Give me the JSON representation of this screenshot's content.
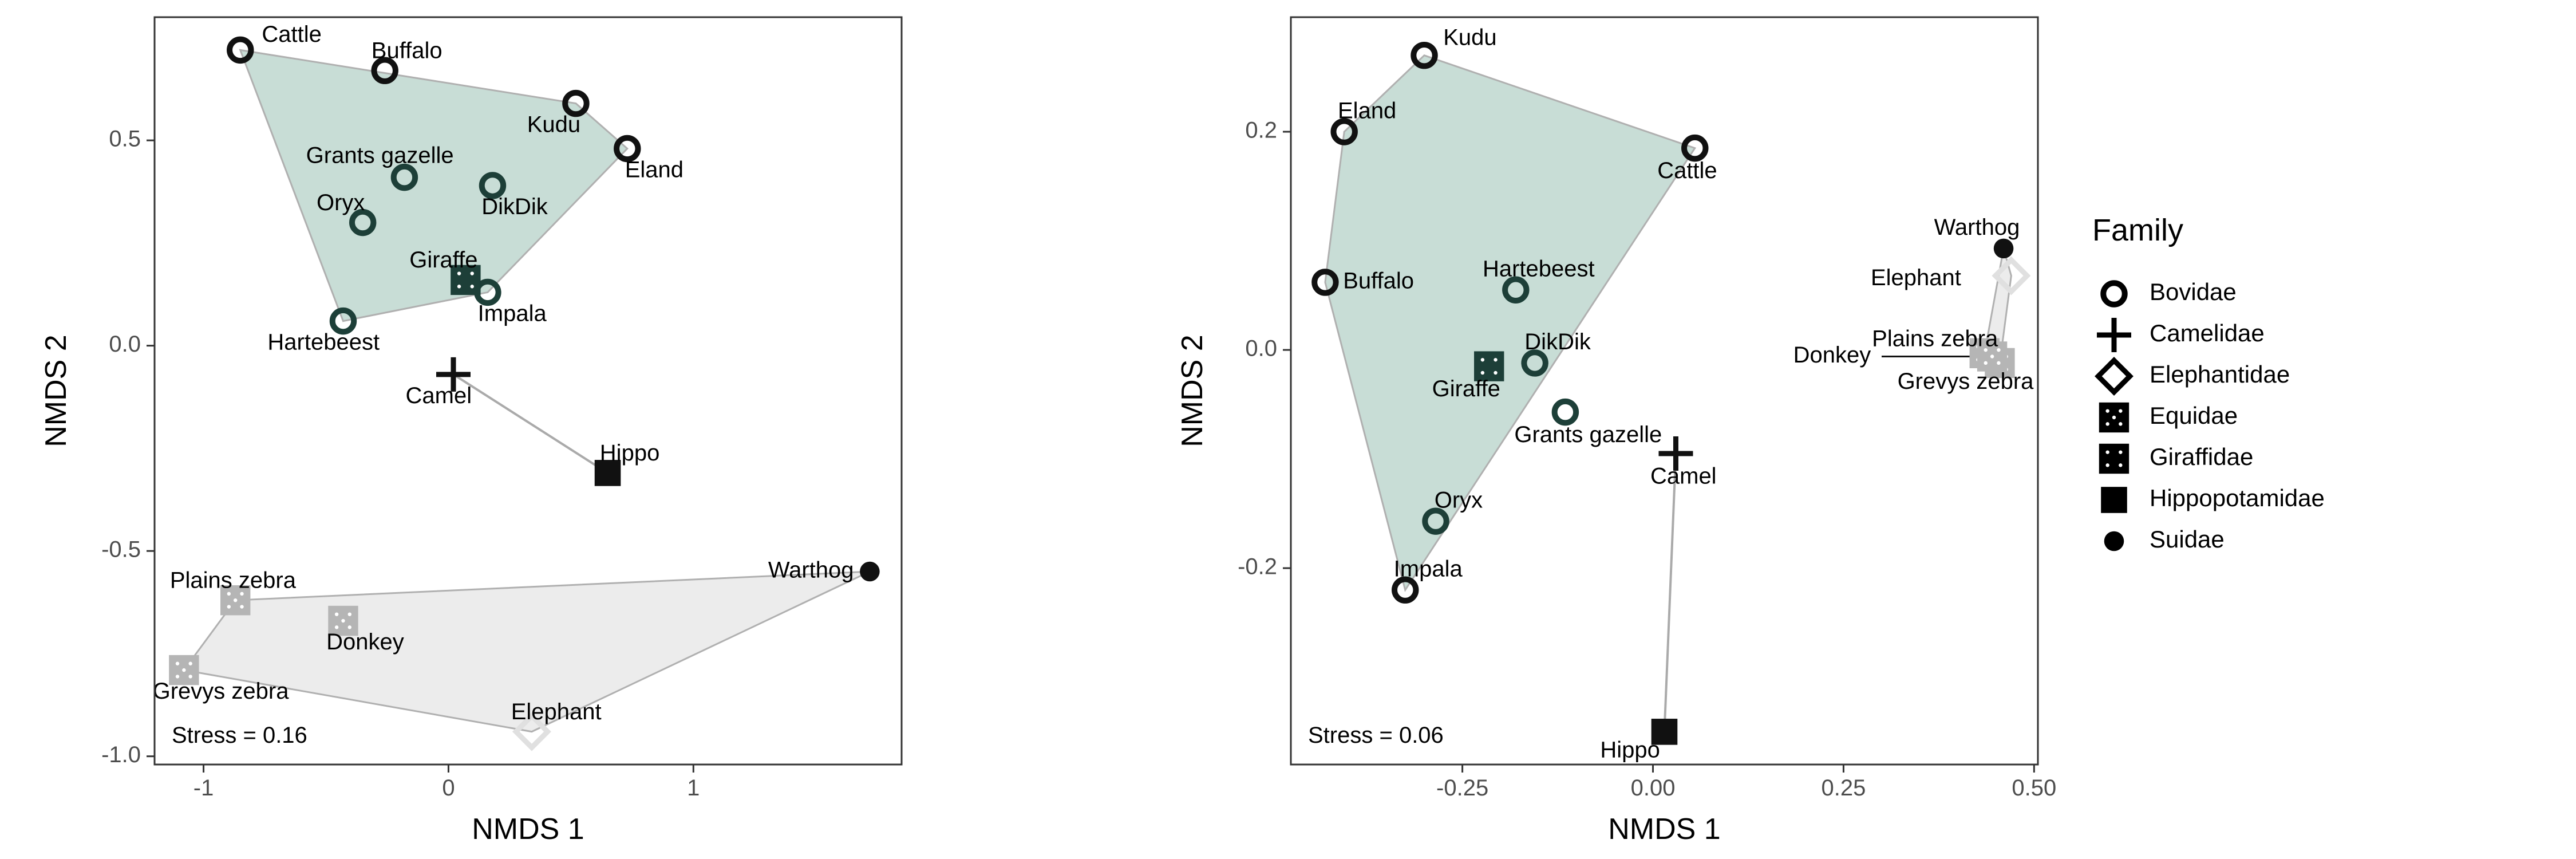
{
  "chart_data": [
    {
      "type": "scatter",
      "xlabel": "NMDS 1",
      "ylabel": "NMDS 2",
      "xlim": [
        -1.2,
        1.85
      ],
      "ylim": [
        -1.02,
        0.8
      ],
      "xticks": [
        -1,
        0,
        1
      ],
      "xtick_labels": [
        "-1",
        "0",
        "1"
      ],
      "yticks": [
        -1.0,
        -0.5,
        0.0,
        0.5
      ],
      "ytick_labels": [
        "-1.0",
        "-0.5",
        "0.0",
        "0.5"
      ],
      "grid": false,
      "stress_label": "Stress =  0.16",
      "hulls": [
        {
          "group": "Bovidae",
          "fill": "#c8ddd6",
          "stroke": "#b0b0b0",
          "members": [
            "Cattle",
            "Kudu",
            "Eland",
            "Impala",
            "Hartebeest"
          ]
        },
        {
          "group": "Equidae+Elephantidae+Suidae",
          "fill": "#ececec",
          "stroke": "#b0b0b0",
          "members": [
            "Plains zebra",
            "Warthog",
            "Elephant",
            "Grevys zebra"
          ]
        }
      ],
      "links": [
        {
          "from": "Camel",
          "to": "Hippo",
          "stroke": "#aaaaaa"
        }
      ],
      "points": [
        {
          "label": "Cattle",
          "family": "Bovidae",
          "x": -0.85,
          "y": 0.72,
          "color": "#111111",
          "label_dx": 0.21,
          "label_dy": 0.035
        },
        {
          "label": "Buffalo",
          "family": "Bovidae",
          "x": -0.26,
          "y": 0.67,
          "color": "#111111",
          "label_dx": 0.09,
          "label_dy": 0.045
        },
        {
          "label": "Kudu",
          "family": "Bovidae",
          "x": 0.52,
          "y": 0.59,
          "color": "#111111",
          "label_dx": -0.09,
          "label_dy": -0.055
        },
        {
          "label": "Eland",
          "family": "Bovidae",
          "x": 0.73,
          "y": 0.48,
          "color": "#111111",
          "label_dx": 0.11,
          "label_dy": -0.055
        },
        {
          "label": "Grants gazelle",
          "family": "Bovidae",
          "x": -0.18,
          "y": 0.41,
          "color": "#1d3f38",
          "label_dx": -0.1,
          "label_dy": 0.05
        },
        {
          "label": "DikDik",
          "family": "Bovidae",
          "x": 0.18,
          "y": 0.39,
          "color": "#1d3f38",
          "label_dx": 0.09,
          "label_dy": -0.055
        },
        {
          "label": "Oryx",
          "family": "Bovidae",
          "x": -0.35,
          "y": 0.3,
          "color": "#1d3f38",
          "label_dx": -0.09,
          "label_dy": 0.045
        },
        {
          "label": "Impala",
          "family": "Bovidae",
          "x": 0.16,
          "y": 0.13,
          "color": "#1d3f38",
          "label_dx": 0.1,
          "label_dy": -0.055
        },
        {
          "label": "Hartebeest",
          "family": "Bovidae",
          "x": -0.43,
          "y": 0.06,
          "color": "#1d3f38",
          "label_dx": -0.08,
          "label_dy": -0.055
        },
        {
          "label": "Giraffe",
          "family": "Giraffidae",
          "x": 0.07,
          "y": 0.16,
          "color": "#1d3f38",
          "label_dx": -0.09,
          "label_dy": 0.045
        },
        {
          "label": "Camel",
          "family": "Camelidae",
          "x": 0.02,
          "y": -0.07,
          "color": "#111111",
          "label_dx": -0.06,
          "label_dy": -0.055
        },
        {
          "label": "Hippo",
          "family": "Hippopotamidae",
          "x": 0.65,
          "y": -0.31,
          "color": "#111111",
          "label_dx": 0.09,
          "label_dy": 0.045
        },
        {
          "label": "Warthog",
          "family": "Suidae",
          "x": 1.72,
          "y": -0.55,
          "color": "#111111",
          "label_dx": -0.24,
          "label_dy": 0.0
        },
        {
          "label": "Plains zebra",
          "family": "Equidae",
          "x": -0.87,
          "y": -0.62,
          "color": "#b5b5b5",
          "label_dx": -0.01,
          "label_dy": 0.045
        },
        {
          "label": "Donkey",
          "family": "Equidae",
          "x": -0.43,
          "y": -0.67,
          "color": "#b5b5b5",
          "label_dx": 0.09,
          "label_dy": -0.055
        },
        {
          "label": "Grevys zebra",
          "family": "Equidae",
          "x": -1.08,
          "y": -0.79,
          "color": "#b5b5b5",
          "label_dx": 0.15,
          "label_dy": -0.055
        },
        {
          "label": "Elephant",
          "family": "Elephantidae",
          "x": 0.34,
          "y": -0.94,
          "color": "#e0e0e0",
          "label_dx": 0.1,
          "label_dy": 0.045
        }
      ]
    },
    {
      "type": "scatter",
      "xlabel": "NMDS 1",
      "ylabel": "NMDS 2",
      "xlim": [
        -0.475,
        0.505
      ],
      "ylim": [
        -0.38,
        0.305
      ],
      "xticks": [
        -0.25,
        0.0,
        0.25,
        0.5
      ],
      "xtick_labels": [
        "-0.25",
        "0.00",
        "0.25",
        "0.50"
      ],
      "yticks": [
        -0.2,
        0.0,
        0.2
      ],
      "ytick_labels": [
        "-0.2",
        "0.0",
        "0.2"
      ],
      "grid": false,
      "stress_label": "Stress =  0.06",
      "hulls": [
        {
          "group": "Bovidae",
          "fill": "#c8ddd6",
          "stroke": "#b0b0b0",
          "members": [
            "Kudu",
            "Cattle",
            "Impala",
            "Buffalo",
            "Eland"
          ]
        },
        {
          "group": "Equidae+Elephantidae+Suidae",
          "fill": "#ececec",
          "stroke": "#b0b0b0",
          "members": [
            "Warthog",
            "Elephant",
            "Grevys zebra",
            "Plains zebra"
          ]
        }
      ],
      "links": [
        {
          "from": "Camel",
          "to": "Hippo",
          "stroke": "#aaaaaa"
        }
      ],
      "points": [
        {
          "label": "Kudu",
          "family": "Bovidae",
          "x": -0.3,
          "y": 0.27,
          "color": "#111111",
          "label_dx": 0.06,
          "label_dy": 0.015
        },
        {
          "label": "Eland",
          "family": "Bovidae",
          "x": -0.405,
          "y": 0.2,
          "color": "#111111",
          "label_dx": 0.03,
          "label_dy": 0.018
        },
        {
          "label": "Cattle",
          "family": "Bovidae",
          "x": 0.055,
          "y": 0.185,
          "color": "#111111",
          "label_dx": -0.01,
          "label_dy": -0.022
        },
        {
          "label": "Buffalo",
          "family": "Bovidae",
          "x": -0.43,
          "y": 0.062,
          "color": "#111111",
          "label_dx": 0.07,
          "label_dy": 0.0
        },
        {
          "label": "Hartebeest",
          "family": "Bovidae",
          "x": -0.18,
          "y": 0.055,
          "color": "#1d3f38",
          "label_dx": 0.03,
          "label_dy": 0.018
        },
        {
          "label": "DikDik",
          "family": "Bovidae",
          "x": -0.155,
          "y": -0.012,
          "color": "#1d3f38",
          "label_dx": 0.03,
          "label_dy": 0.018
        },
        {
          "label": "Grants gazelle",
          "family": "Bovidae",
          "x": -0.115,
          "y": -0.057,
          "color": "#1d3f38",
          "label_dx": 0.03,
          "label_dy": -0.022
        },
        {
          "label": "Oryx",
          "family": "Bovidae",
          "x": -0.285,
          "y": -0.157,
          "color": "#1d3f38",
          "label_dx": 0.03,
          "label_dy": 0.018
        },
        {
          "label": "Impala",
          "family": "Bovidae",
          "x": -0.325,
          "y": -0.22,
          "color": "#111111",
          "label_dx": 0.03,
          "label_dy": 0.018
        },
        {
          "label": "Giraffe",
          "family": "Giraffidae",
          "x": -0.215,
          "y": -0.015,
          "color": "#1d3f38",
          "label_dx": -0.03,
          "label_dy": -0.022
        },
        {
          "label": "Camel",
          "family": "Camelidae",
          "x": 0.03,
          "y": -0.095,
          "color": "#111111",
          "label_dx": 0.01,
          "label_dy": -0.022
        },
        {
          "label": "Hippo",
          "family": "Hippopotamidae",
          "x": 0.015,
          "y": -0.35,
          "color": "#111111",
          "label_dx": -0.045,
          "label_dy": -0.018
        },
        {
          "label": "Warthog",
          "family": "Suidae",
          "x": 0.46,
          "y": 0.093,
          "color": "#111111",
          "label_dx": -0.035,
          "label_dy": 0.018
        },
        {
          "label": "Elephant",
          "family": "Elephantidae",
          "x": 0.47,
          "y": 0.068,
          "color": "#e0e0e0",
          "label_dx": -0.125,
          "label_dy": -0.003
        },
        {
          "label": "Plains zebra",
          "family": "Equidae",
          "x": 0.435,
          "y": -0.003,
          "color": "#b5b5b5",
          "label_dx": -0.065,
          "label_dy": 0.012
        },
        {
          "label": "Grevys zebra",
          "family": "Equidae",
          "x": 0.455,
          "y": -0.012,
          "color": "#b5b5b5",
          "label_dx": -0.045,
          "label_dy": -0.018
        },
        {
          "label": "Donkey",
          "family": "Equidae",
          "x": 0.445,
          "y": -0.006,
          "color": "#b5b5b5",
          "label_dx": -0.21,
          "label_dy": -0.0
        }
      ],
      "leader_lines": [
        {
          "label": "Donkey",
          "from_dx": -0.145,
          "from_dy": 0.0
        }
      ]
    }
  ],
  "legend": {
    "title": "Family",
    "placement": "right",
    "entries": [
      {
        "label": "Bovidae",
        "shape": "ring"
      },
      {
        "label": "Camelidae",
        "shape": "plus"
      },
      {
        "label": "Elephantidae",
        "shape": "diamond"
      },
      {
        "label": "Equidae",
        "shape": "square-dots5"
      },
      {
        "label": "Giraffidae",
        "shape": "square-dots4"
      },
      {
        "label": "Hippopotamidae",
        "shape": "square"
      },
      {
        "label": "Suidae",
        "shape": "dot"
      }
    ]
  }
}
